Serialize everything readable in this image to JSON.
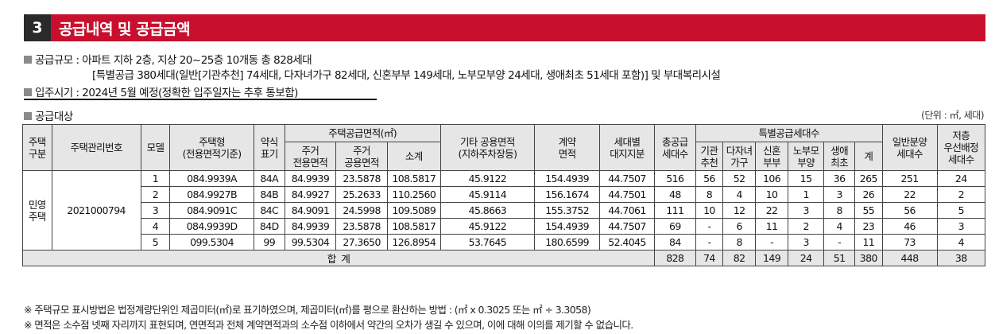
{
  "header": {
    "number": "3",
    "title": "공급내역 및 공급금액"
  },
  "supply_scale": {
    "line1": "공급규모 : 아파트 지하 2층, 지상 20~25층 10개동 총 828세대",
    "line2": "[특별공급 380세대(일반[기관추천] 74세대, 다자녀가구 82세대, 신혼부부 149세대, 노부모부양 24세대, 생애최초 51세대 포함)] 및 부대복리시설"
  },
  "move_in": "입주시기 : 2024년 5월 예정(정확한 입주일자는 추후 통보함)",
  "supply_target": {
    "label": "공급대상",
    "unit": "(단위 : ㎡, 세대)"
  },
  "table": {
    "headers": {
      "type": "주택\n구분",
      "mgmt_no": "주택관리번호",
      "model": "모델",
      "house_type": "주택형\n(전용면적기준)",
      "abbr": "약식\n표기",
      "area_group": "주택공급면적(㎡)",
      "exclusive": "주거\n전용면적",
      "common": "주거\n공용면적",
      "subtotal": "소계",
      "other_common": "기타 공용면적\n(지하주차장등)",
      "contract_area": "계약\n면적",
      "land_share": "세대별\n대지지분",
      "total_supply": "총공급\n세대수",
      "special_group": "특별공급세대수",
      "agency": "기관\n추천",
      "multi_child": "다자녀\n가구",
      "newlywed": "신혼\n부부",
      "parents": "노부모\n부양",
      "first_time": "생애\n최초",
      "special_sum": "계",
      "general": "일반분양\n세대수",
      "priority": "저층\n우선배정\n세대수"
    },
    "house_category": "민영\n주택",
    "management_number": "2021000794",
    "rows": [
      [
        "1",
        "084.9939A",
        "84A",
        "84.9939",
        "23.5878",
        "108.5817",
        "45.9122",
        "154.4939",
        "44.7507",
        "516",
        "56",
        "52",
        "106",
        "15",
        "36",
        "265",
        "251",
        "24"
      ],
      [
        "2",
        "084.9927B",
        "84B",
        "84.9927",
        "25.2633",
        "110.2560",
        "45.9114",
        "156.1674",
        "44.7501",
        "48",
        "8",
        "4",
        "10",
        "1",
        "3",
        "26",
        "22",
        "2"
      ],
      [
        "3",
        "084.9091C",
        "84C",
        "84.9091",
        "24.5998",
        "109.5089",
        "45.8663",
        "155.3752",
        "44.7061",
        "111",
        "10",
        "12",
        "22",
        "3",
        "8",
        "55",
        "56",
        "5"
      ],
      [
        "4",
        "084.9939D",
        "84D",
        "84.9939",
        "23.5878",
        "108.5817",
        "45.9122",
        "154.4939",
        "44.7507",
        "69",
        "-",
        "6",
        "11",
        "2",
        "4",
        "23",
        "46",
        "3"
      ],
      [
        "5",
        "099.5304",
        "99",
        "99.5304",
        "27.3650",
        "126.8954",
        "53.7645",
        "180.6599",
        "52.4045",
        "84",
        "-",
        "8",
        "-",
        "3",
        "-",
        "11",
        "73",
        "4"
      ]
    ],
    "total": {
      "label": "합  계",
      "values": [
        "828",
        "74",
        "82",
        "149",
        "24",
        "51",
        "380",
        "448",
        "38"
      ]
    }
  },
  "notes": [
    "※ 주택규모 표시방법은 법정계량단위인 제곱미터(㎡)로 표기하였으며, 제곱미터(㎡)를 평으로 환산하는 방법 : (㎡ x 0.3025 또는 ㎡ ÷ 3.3058)",
    "※ 면적은 소수점 넷째 자리까지 표현되며, 연면적과 전체 계약면적과의 소수점 이하에서 약간의 오차가 생길 수 있으며, 이에 대해 이의를 제기할 수 없습니다."
  ],
  "colors": {
    "banner": "#c8102e",
    "banner_number_bg": "#2a2a2a",
    "header_fill": "#e6e6e6",
    "bullet": "#8a8a8a"
  }
}
